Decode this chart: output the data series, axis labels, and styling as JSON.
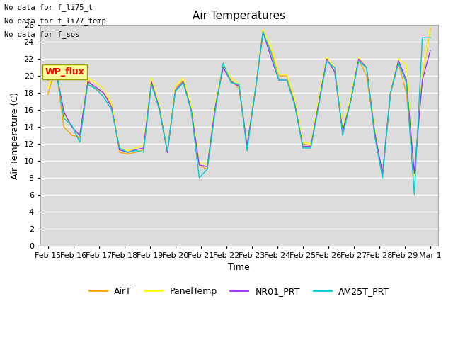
{
  "title": "Air Temperatures",
  "xlabel": "Time",
  "ylabel": "Air Temperature (C)",
  "annotations": [
    "No data for f_li75_t",
    "No data for f_li77_temp",
    "No data for f_sos"
  ],
  "wp_flux_label": "WP_flux",
  "ylim": [
    0,
    26
  ],
  "x_labels": [
    "Feb 15",
    "Feb 16",
    "Feb 17",
    "Feb 18",
    "Feb 19",
    "Feb 20",
    "Feb 21",
    "Feb 22",
    "Feb 23",
    "Feb 24",
    "Feb 25",
    "Feb 26",
    "Feb 27",
    "Feb 28",
    "Feb 29",
    "Mar 1"
  ],
  "AirT_color": "#FFA500",
  "PanelTemp_color": "#FFFF00",
  "NR01_PRT_color": "#9933FF",
  "AM25T_PRT_color": "#00CCCC",
  "AirT": [
    17.8,
    21.0,
    14.0,
    13.0,
    12.8,
    19.5,
    18.5,
    18.0,
    16.5,
    11.0,
    10.8,
    11.0,
    11.3,
    19.5,
    16.0,
    11.0,
    18.5,
    19.5,
    16.0,
    9.5,
    9.0,
    16.5,
    21.0,
    19.5,
    18.5,
    11.8,
    18.0,
    25.0,
    23.0,
    20.0,
    20.0,
    17.0,
    12.0,
    11.8,
    17.0,
    22.0,
    20.5,
    13.5,
    17.0,
    22.0,
    20.0,
    13.5,
    8.2,
    18.0,
    21.5,
    18.0,
    8.3,
    20.0,
    25.5
  ],
  "PanelTemp": [
    18.5,
    21.3,
    15.3,
    14.0,
    13.0,
    19.8,
    19.2,
    18.5,
    16.8,
    11.5,
    11.2,
    11.5,
    11.8,
    19.8,
    16.5,
    11.2,
    18.8,
    19.8,
    16.5,
    9.8,
    9.5,
    16.8,
    21.3,
    19.8,
    19.0,
    12.0,
    18.3,
    25.5,
    23.5,
    20.2,
    20.2,
    17.2,
    12.2,
    12.0,
    17.5,
    22.2,
    21.0,
    14.0,
    17.5,
    22.2,
    21.0,
    14.0,
    8.0,
    18.2,
    22.0,
    21.3,
    8.0,
    20.2,
    25.8
  ],
  "NR01_PRT": [
    19.5,
    20.8,
    15.8,
    14.0,
    13.0,
    19.3,
    18.7,
    18.0,
    16.3,
    11.3,
    11.0,
    11.3,
    11.5,
    19.3,
    16.2,
    11.0,
    18.3,
    19.3,
    16.0,
    9.5,
    9.3,
    16.3,
    21.0,
    19.3,
    18.8,
    11.8,
    18.0,
    25.2,
    22.2,
    19.5,
    19.5,
    16.7,
    11.7,
    11.7,
    16.8,
    22.0,
    20.5,
    13.5,
    17.0,
    22.0,
    21.0,
    13.5,
    8.5,
    18.0,
    21.8,
    19.5,
    8.5,
    19.5,
    23.0
  ],
  "AM25T_PRT": [
    20.8,
    21.0,
    15.0,
    14.2,
    12.2,
    19.0,
    18.5,
    17.5,
    16.0,
    11.5,
    11.0,
    11.2,
    11.0,
    19.0,
    16.0,
    11.2,
    18.2,
    19.2,
    15.8,
    8.0,
    9.0,
    15.8,
    21.5,
    19.2,
    19.0,
    11.2,
    18.0,
    25.2,
    22.7,
    19.5,
    19.5,
    16.5,
    11.5,
    11.5,
    16.5,
    21.7,
    21.0,
    13.0,
    17.0,
    21.7,
    21.0,
    13.0,
    8.0,
    18.0,
    21.5,
    19.2,
    6.0,
    24.5,
    24.5
  ],
  "legend_labels": [
    "AirT",
    "PanelTemp",
    "NR01_PRT",
    "AM25T_PRT"
  ],
  "background_color": "#DCDCDC",
  "grid_color": "#FFFFFF",
  "fig_width": 6.4,
  "fig_height": 4.8,
  "title_fontsize": 11,
  "axis_fontsize": 9,
  "tick_fontsize": 8,
  "legend_fontsize": 9,
  "linewidth": 1.0
}
